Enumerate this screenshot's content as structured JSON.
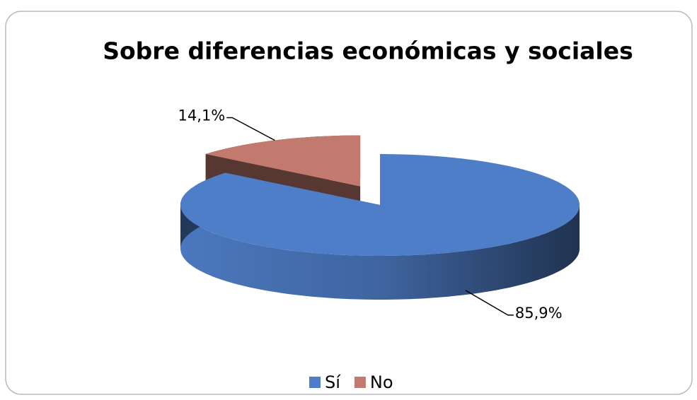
{
  "chart_data": {
    "type": "pie3d",
    "title": "Sobre diferencias económicas y sociales",
    "categories": [
      "Sí",
      "No"
    ],
    "values": [
      85.9,
      14.1
    ],
    "value_labels": [
      "85,9%",
      "14,1%"
    ],
    "colors": [
      "#4f7ec8",
      "#c27a6e"
    ],
    "legend": "bottom"
  }
}
